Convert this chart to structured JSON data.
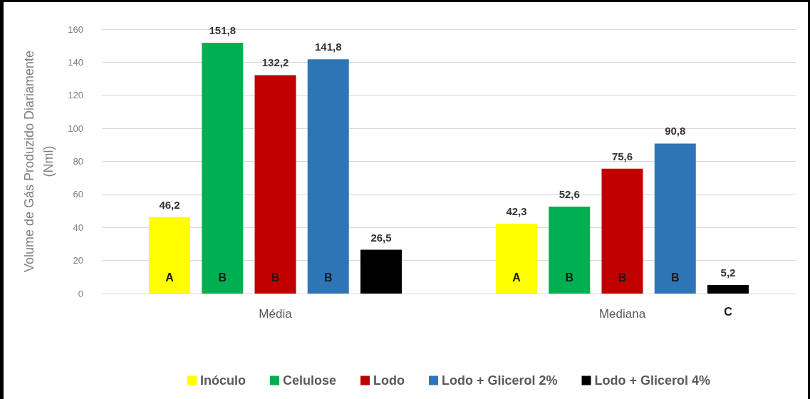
{
  "chart_data": {
    "type": "bar",
    "ylabel": "Volume de Gás Produzido Diariamente (Nml)",
    "categories": [
      "Média",
      "Mediana"
    ],
    "series": [
      {
        "name": "Inóculo",
        "color": "#ffff00",
        "values": [
          46.2,
          42.3
        ],
        "value_labels": [
          "46,2",
          "42,3"
        ]
      },
      {
        "name": "Celulose",
        "color": "#00b050",
        "values": [
          151.8,
          52.6
        ],
        "value_labels": [
          "151,8",
          "52,6"
        ]
      },
      {
        "name": "Lodo",
        "color": "#c00000",
        "values": [
          132.2,
          75.6
        ],
        "value_labels": [
          "132,2",
          "75,6"
        ]
      },
      {
        "name": "Lodo + Glicerol 2%",
        "color": "#2e75b6",
        "values": [
          141.8,
          90.8
        ],
        "value_labels": [
          "141,8",
          "90,8"
        ]
      },
      {
        "name": "Lodo + Glicerol 4%",
        "color": "#000000",
        "values": [
          26.5,
          5.2
        ],
        "value_labels": [
          "26,5",
          "5,2"
        ]
      }
    ],
    "ylim": [
      0,
      160
    ],
    "yticks": [
      0,
      20,
      40,
      60,
      80,
      100,
      120,
      140,
      160
    ],
    "grid": "y",
    "legend": "bottom",
    "annotations": [
      "A",
      "B",
      "B",
      "B",
      "A",
      "B",
      "B",
      "B",
      "C"
    ]
  }
}
